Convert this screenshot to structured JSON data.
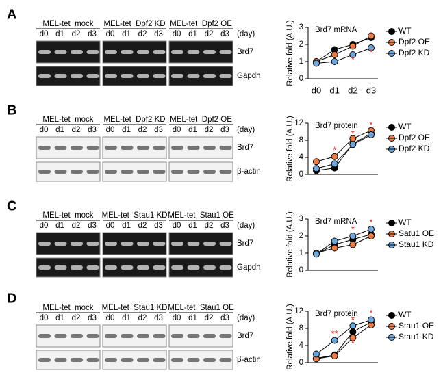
{
  "gels": [
    {
      "letter": "A",
      "style": "dark",
      "unit": "(day)",
      "rows": [
        "Brd7",
        "Gapdh"
      ],
      "groups": [
        {
          "title": "MEL-tet  mock",
          "lanes": [
            "d0",
            "d1",
            "d2",
            "d3"
          ]
        },
        {
          "title": "MEL-tet  Dpf2 KD",
          "lanes": [
            "d0",
            "d1",
            "d2",
            "d3"
          ]
        },
        {
          "title": "MEL-tet  Dpf2 OE",
          "lanes": [
            "d0",
            "d1",
            "d2",
            "d3"
          ]
        }
      ]
    },
    {
      "letter": "B",
      "style": "light",
      "unit": "(day)",
      "rows": [
        "Brd7",
        "β-actin"
      ],
      "groups": [
        {
          "title": "MEL-tet  mock",
          "lanes": [
            "d0",
            "d1",
            "d2",
            "d3"
          ]
        },
        {
          "title": "MEL-tet  Dpf2 KD",
          "lanes": [
            "d0",
            "d1",
            "d2",
            "d3"
          ]
        },
        {
          "title": "MEL-tet  Dpf2 OE",
          "lanes": [
            "d0",
            "d1",
            "d2",
            "d3"
          ]
        }
      ]
    },
    {
      "letter": "C",
      "style": "dark",
      "unit": "(day)",
      "rows": [
        "Brd7",
        "Gapdh"
      ],
      "groups": [
        {
          "title": "MEL-tet  mock",
          "lanes": [
            "d0",
            "d1",
            "d2",
            "d3"
          ]
        },
        {
          "title": "MEL-tet  Stau1 KD",
          "lanes": [
            "d0",
            "d1",
            "d2",
            "d3"
          ]
        },
        {
          "title": "MEL-tet  Stau1 OE",
          "lanes": [
            "d0",
            "d1",
            "d2",
            "d3"
          ]
        }
      ]
    },
    {
      "letter": "D",
      "style": "light",
      "unit": "(day)",
      "rows": [
        "Brd7",
        "β-actin"
      ],
      "groups": [
        {
          "title": "MEL-tet  mock",
          "lanes": [
            "d0",
            "d1",
            "d2",
            "d3"
          ]
        },
        {
          "title": "MEL-tet  Stau1 KD",
          "lanes": [
            "d0",
            "d1",
            "d2",
            "d3"
          ]
        },
        {
          "title": "MEL-tet  Stau1 OE",
          "lanes": [
            "d0",
            "d1",
            "d2",
            "d3"
          ]
        }
      ]
    }
  ],
  "chart_data": [
    {
      "type": "line",
      "title": "Brd7 mRNA",
      "y_label": "Relative fold (A.U.)",
      "categories": [
        "d0",
        "d1",
        "d2",
        "d3"
      ],
      "ylim": [
        0,
        3
      ],
      "yticks": [
        0,
        1,
        2,
        3
      ],
      "series": [
        {
          "name": "WT",
          "color": "#000000",
          "values": [
            1.0,
            1.7,
            2.0,
            2.4
          ]
        },
        {
          "name": "Dpf2 OE",
          "color": "#ed7d45",
          "values": [
            1.0,
            1.4,
            1.9,
            2.5
          ]
        },
        {
          "name": "Dpf2 KD",
          "color": "#6fa8dc",
          "values": [
            0.9,
            1.0,
            1.4,
            1.8
          ]
        }
      ],
      "annotations": [
        {
          "text": "*",
          "x": 2,
          "y": 1.1
        },
        {
          "text": "*",
          "x": 3,
          "y": 1.5
        }
      ]
    },
    {
      "type": "line",
      "title": "Brd7 protein",
      "y_label": "Relative fold (A.U.)",
      "categories": [
        null,
        null,
        null,
        null
      ],
      "ylim": [
        0,
        12
      ],
      "yticks": [
        0,
        4,
        8,
        12
      ],
      "series": [
        {
          "name": "WT",
          "color": "#000000",
          "values": [
            0.9,
            1.5,
            7.2,
            9.6
          ]
        },
        {
          "name": "Dpf2 OE",
          "color": "#ed7d45",
          "values": [
            3.0,
            4.2,
            8.4,
            10.3
          ]
        },
        {
          "name": "Dpf2 KD",
          "color": "#6fa8dc",
          "values": [
            1.4,
            2.5,
            7.0,
            9.3
          ]
        }
      ],
      "annotations": [
        {
          "text": "*",
          "x": 1,
          "y": 5.6
        },
        {
          "text": "*",
          "x": 2,
          "y": 9.4
        },
        {
          "text": "*",
          "x": 3,
          "y": 11.4
        }
      ]
    },
    {
      "type": "line",
      "title": "Brd7 mRNA",
      "y_label": "Relative fold (A.U.)",
      "categories": [
        null,
        null,
        null,
        null
      ],
      "ylim": [
        0,
        3
      ],
      "yticks": [
        0,
        1,
        2,
        3
      ],
      "series": [
        {
          "name": "WT",
          "color": "#000000",
          "values": [
            0.95,
            1.5,
            1.8,
            2.1
          ]
        },
        {
          "name": "Satu1 OE",
          "color": "#ed7d45",
          "values": [
            1.0,
            1.3,
            1.5,
            2.0
          ]
        },
        {
          "name": "Stau1 KD",
          "color": "#6fa8dc",
          "values": [
            0.95,
            1.7,
            2.0,
            2.4
          ]
        }
      ],
      "annotations": [
        {
          "text": "*",
          "x": 2,
          "y": 2.35
        },
        {
          "text": "*",
          "x": 3,
          "y": 2.75
        }
      ]
    },
    {
      "type": "line",
      "title": "Brd7 protein",
      "y_label": "Relative fold (A.U.)",
      "categories": [
        null,
        null,
        null,
        null
      ],
      "ylim": [
        0,
        12
      ],
      "yticks": [
        0,
        4,
        8,
        12
      ],
      "series": [
        {
          "name": "WT",
          "color": "#000000",
          "values": [
            1.0,
            1.8,
            7.2,
            9.5
          ]
        },
        {
          "name": "Stau1 OE",
          "color": "#ed7d45",
          "values": [
            0.9,
            1.6,
            5.8,
            8.8
          ]
        },
        {
          "name": "Stau1 KD",
          "color": "#6fa8dc",
          "values": [
            2.0,
            5.2,
            8.6,
            10.0
          ]
        }
      ],
      "annotations": [
        {
          "text": "**",
          "x": 1,
          "y": 6.6
        },
        {
          "text": "*",
          "x": 2,
          "y": 9.9
        },
        {
          "text": "*",
          "x": 2,
          "y": 4.4
        },
        {
          "text": "*",
          "x": 3,
          "y": 11.4
        }
      ]
    }
  ]
}
